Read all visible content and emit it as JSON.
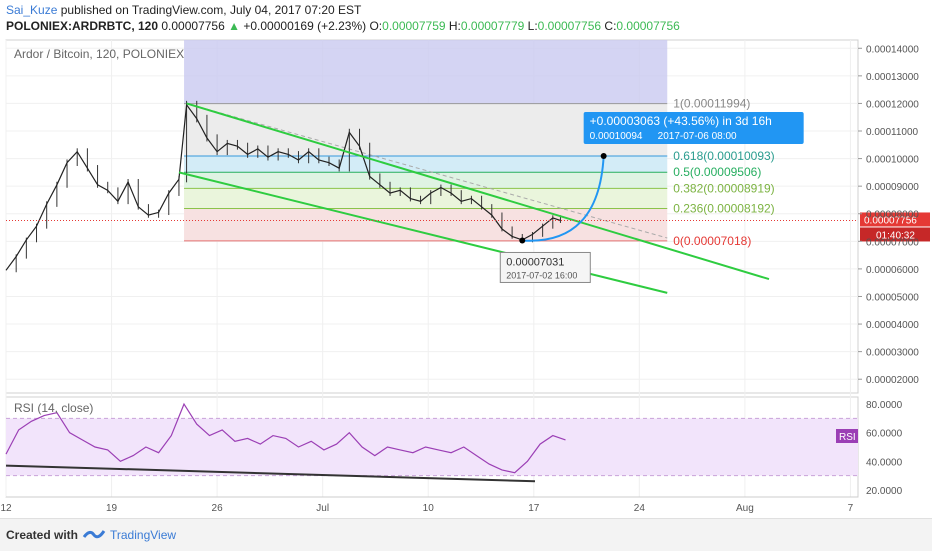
{
  "header": {
    "author": "Sai_Kuze",
    "published_text": "published on TradingView.com, July 04, 2017 07:20 EST",
    "symbol": "POLONIEX:ARDRBTC, 120",
    "last": "0.00007756",
    "change": "+0.00000169 (+2.23%)",
    "o_label": "O:",
    "o_value": "0.00007759",
    "h_label": "H:",
    "h_value": "0.00007779",
    "l_label": "L:",
    "l_value": "0.00007756",
    "c_label": "C:",
    "c_value": "0.00007756"
  },
  "footer": {
    "created_with": "Created with",
    "brand": "TradingView"
  },
  "colors": {
    "up": "#3cba54",
    "channel": "#2ecc40",
    "fib_red": "#f2dede",
    "fib_green": "#dff0d8",
    "fib_blue": "#d6eaf8",
    "fib_gray": "#e8e8e8",
    "proj_box": "#c9c9f0",
    "rsi_line": "#9b3fb5",
    "rsi_band": "#f2e4fb",
    "callout": "#2196f3",
    "price_tag": "#e53935"
  },
  "chart_data": [
    {
      "type": "candlestick",
      "title": "Ardor / Bitcoin, 120, POLONIEX",
      "ylim": [
        1.5e-05,
        0.000143
      ],
      "y_ticks": [
        "0.00014000",
        "0.00013000",
        "0.00012000",
        "0.00011000",
        "0.00010000",
        "0.00009000",
        "0.00008000",
        "0.00007000",
        "0.00006000",
        "0.00005000",
        "0.00004000",
        "0.00003000",
        "0.00002000"
      ],
      "x_ticks": [
        "12",
        "19",
        "26",
        "Jul",
        "10",
        "17",
        "24",
        "Aug",
        "7"
      ],
      "price_trace": [
        [
          12.0,
          5.95e-05
        ],
        [
          12.4,
          6.45e-05
        ],
        [
          12.8,
          7.05e-05
        ],
        [
          13.2,
          7.55e-05
        ],
        [
          13.6,
          8.35e-05
        ],
        [
          14.0,
          9.05e-05
        ],
        [
          14.4,
          9.85e-05
        ],
        [
          14.8,
          0.0001025
        ],
        [
          15.2,
          9.65e-05
        ],
        [
          15.6,
          9.05e-05
        ],
        [
          16.0,
          8.85e-05
        ],
        [
          16.4,
          8.45e-05
        ],
        [
          16.8,
          9.15e-05
        ],
        [
          17.2,
          8.25e-05
        ],
        [
          17.6,
          7.95e-05
        ],
        [
          18.0,
          8.05e-05
        ],
        [
          18.4,
          8.75e-05
        ],
        [
          18.8,
          9.25e-05
        ],
        [
          19.1,
          0.0001195
        ],
        [
          19.5,
          0.0001145
        ],
        [
          19.9,
          0.0001075
        ],
        [
          20.3,
          0.0001025
        ],
        [
          20.7,
          0.0001055
        ],
        [
          21.1,
          0.0001045
        ],
        [
          21.5,
          0.0001015
        ],
        [
          21.9,
          0.0001035
        ],
        [
          22.3,
          0.0001005
        ],
        [
          22.7,
          0.0001025
        ],
        [
          23.1,
          0.0001015
        ],
        [
          23.5,
          9.95e-05
        ],
        [
          23.9,
          0.0001025
        ],
        [
          24.3,
          9.95e-05
        ],
        [
          24.7,
          9.85e-05
        ],
        [
          25.1,
          9.65e-05
        ],
        [
          25.5,
          0.0001095
        ],
        [
          25.9,
          0.0001045
        ],
        [
          26.3,
          9.35e-05
        ],
        [
          26.7,
          9.05e-05
        ],
        [
          27.1,
          8.75e-05
        ],
        [
          27.5,
          8.85e-05
        ],
        [
          27.9,
          8.55e-05
        ],
        [
          28.3,
          8.45e-05
        ],
        [
          28.7,
          8.75e-05
        ],
        [
          29.1,
          8.95e-05
        ],
        [
          29.5,
          8.75e-05
        ],
        [
          29.9,
          8.45e-05
        ],
        [
          30.3,
          8.55e-05
        ],
        [
          30.7,
          8.25e-05
        ],
        [
          31.1,
          7.95e-05
        ],
        [
          31.5,
          7.45e-05
        ],
        [
          31.9,
          7.18e-05
        ],
        [
          32.3,
          7.05e-05
        ],
        [
          32.7,
          7.25e-05
        ],
        [
          33.1,
          7.55e-05
        ],
        [
          33.5,
          7.85e-05
        ],
        [
          33.8,
          7.76e-05
        ]
      ],
      "current_price": "0.00007756",
      "countdown": "01:40:32",
      "fib_levels": [
        {
          "ratio": "1",
          "price": 0.00011994,
          "label": "1(0.00011994)"
        },
        {
          "ratio": "0.618",
          "price": 0.00010093,
          "label": "0.618(0.00010093)"
        },
        {
          "ratio": "0.5",
          "price": 9.506e-05,
          "label": "0.5(0.00009506)"
        },
        {
          "ratio": "0.382",
          "price": 8.919e-05,
          "label": "0.382(0.00008919)"
        },
        {
          "ratio": "0.236",
          "price": 8.192e-05,
          "label": "0.236(0.00008192)"
        },
        {
          "ratio": "0",
          "price": 7.018e-05,
          "label": "0(0.00007018)"
        }
      ],
      "fib_x_range": [
        19.0,
        38.0
      ],
      "projection_box": {
        "x": [
          19.0,
          38.0
        ],
        "y": [
          0.00012,
          0.000143
        ]
      },
      "channel_lines": [
        {
          "x": [
            19.1,
            42.0
          ],
          "y": [
            0.00012,
            5.63e-05
          ]
        },
        {
          "x": [
            18.8,
            38.0
          ],
          "y": [
            9.5e-05,
            5.13e-05
          ]
        }
      ],
      "projection": {
        "from": [
          32.3,
          7.031e-05
        ],
        "to": [
          35.5,
          0.00010094
        ],
        "label": "+0.00003063 (+43.56%) in 3d 16h",
        "sublabel": "0.00010094",
        "sublabel_date": "2017-07-06  08:00"
      },
      "low_marker": {
        "x": 32.3,
        "y": 7.031e-05,
        "label": "0.00007031",
        "date": "2017-07-02  16:00"
      }
    },
    {
      "type": "line",
      "title": "RSI (14, close)",
      "badge": "RSI",
      "ylim": [
        15,
        85
      ],
      "y_ticks": [
        "80.0000",
        "60.0000",
        "40.0000",
        "20.0000"
      ],
      "band": [
        30,
        70
      ],
      "x": [
        12.0,
        12.5,
        13.0,
        13.5,
        14.0,
        14.5,
        15.0,
        15.5,
        16.0,
        16.5,
        17.0,
        17.5,
        18.0,
        18.5,
        19.0,
        19.5,
        20.0,
        20.5,
        21.0,
        21.5,
        22.0,
        22.5,
        23.0,
        23.5,
        24.0,
        24.5,
        25.0,
        25.5,
        26.0,
        26.5,
        27.0,
        27.5,
        28.0,
        28.5,
        29.0,
        29.5,
        30.0,
        30.5,
        31.0,
        31.5,
        32.0,
        32.5,
        33.0,
        33.5,
        34.0
      ],
      "values": [
        45,
        62,
        68,
        72,
        74,
        60,
        55,
        50,
        48,
        40,
        44,
        50,
        46,
        58,
        80,
        66,
        58,
        62,
        54,
        56,
        52,
        58,
        56,
        50,
        54,
        48,
        52,
        60,
        50,
        44,
        50,
        48,
        46,
        50,
        48,
        46,
        50,
        44,
        38,
        34,
        32,
        40,
        52,
        58,
        55
      ],
      "trendline": {
        "x": [
          12.0,
          32.8
        ],
        "y": [
          37,
          26
        ]
      }
    }
  ]
}
